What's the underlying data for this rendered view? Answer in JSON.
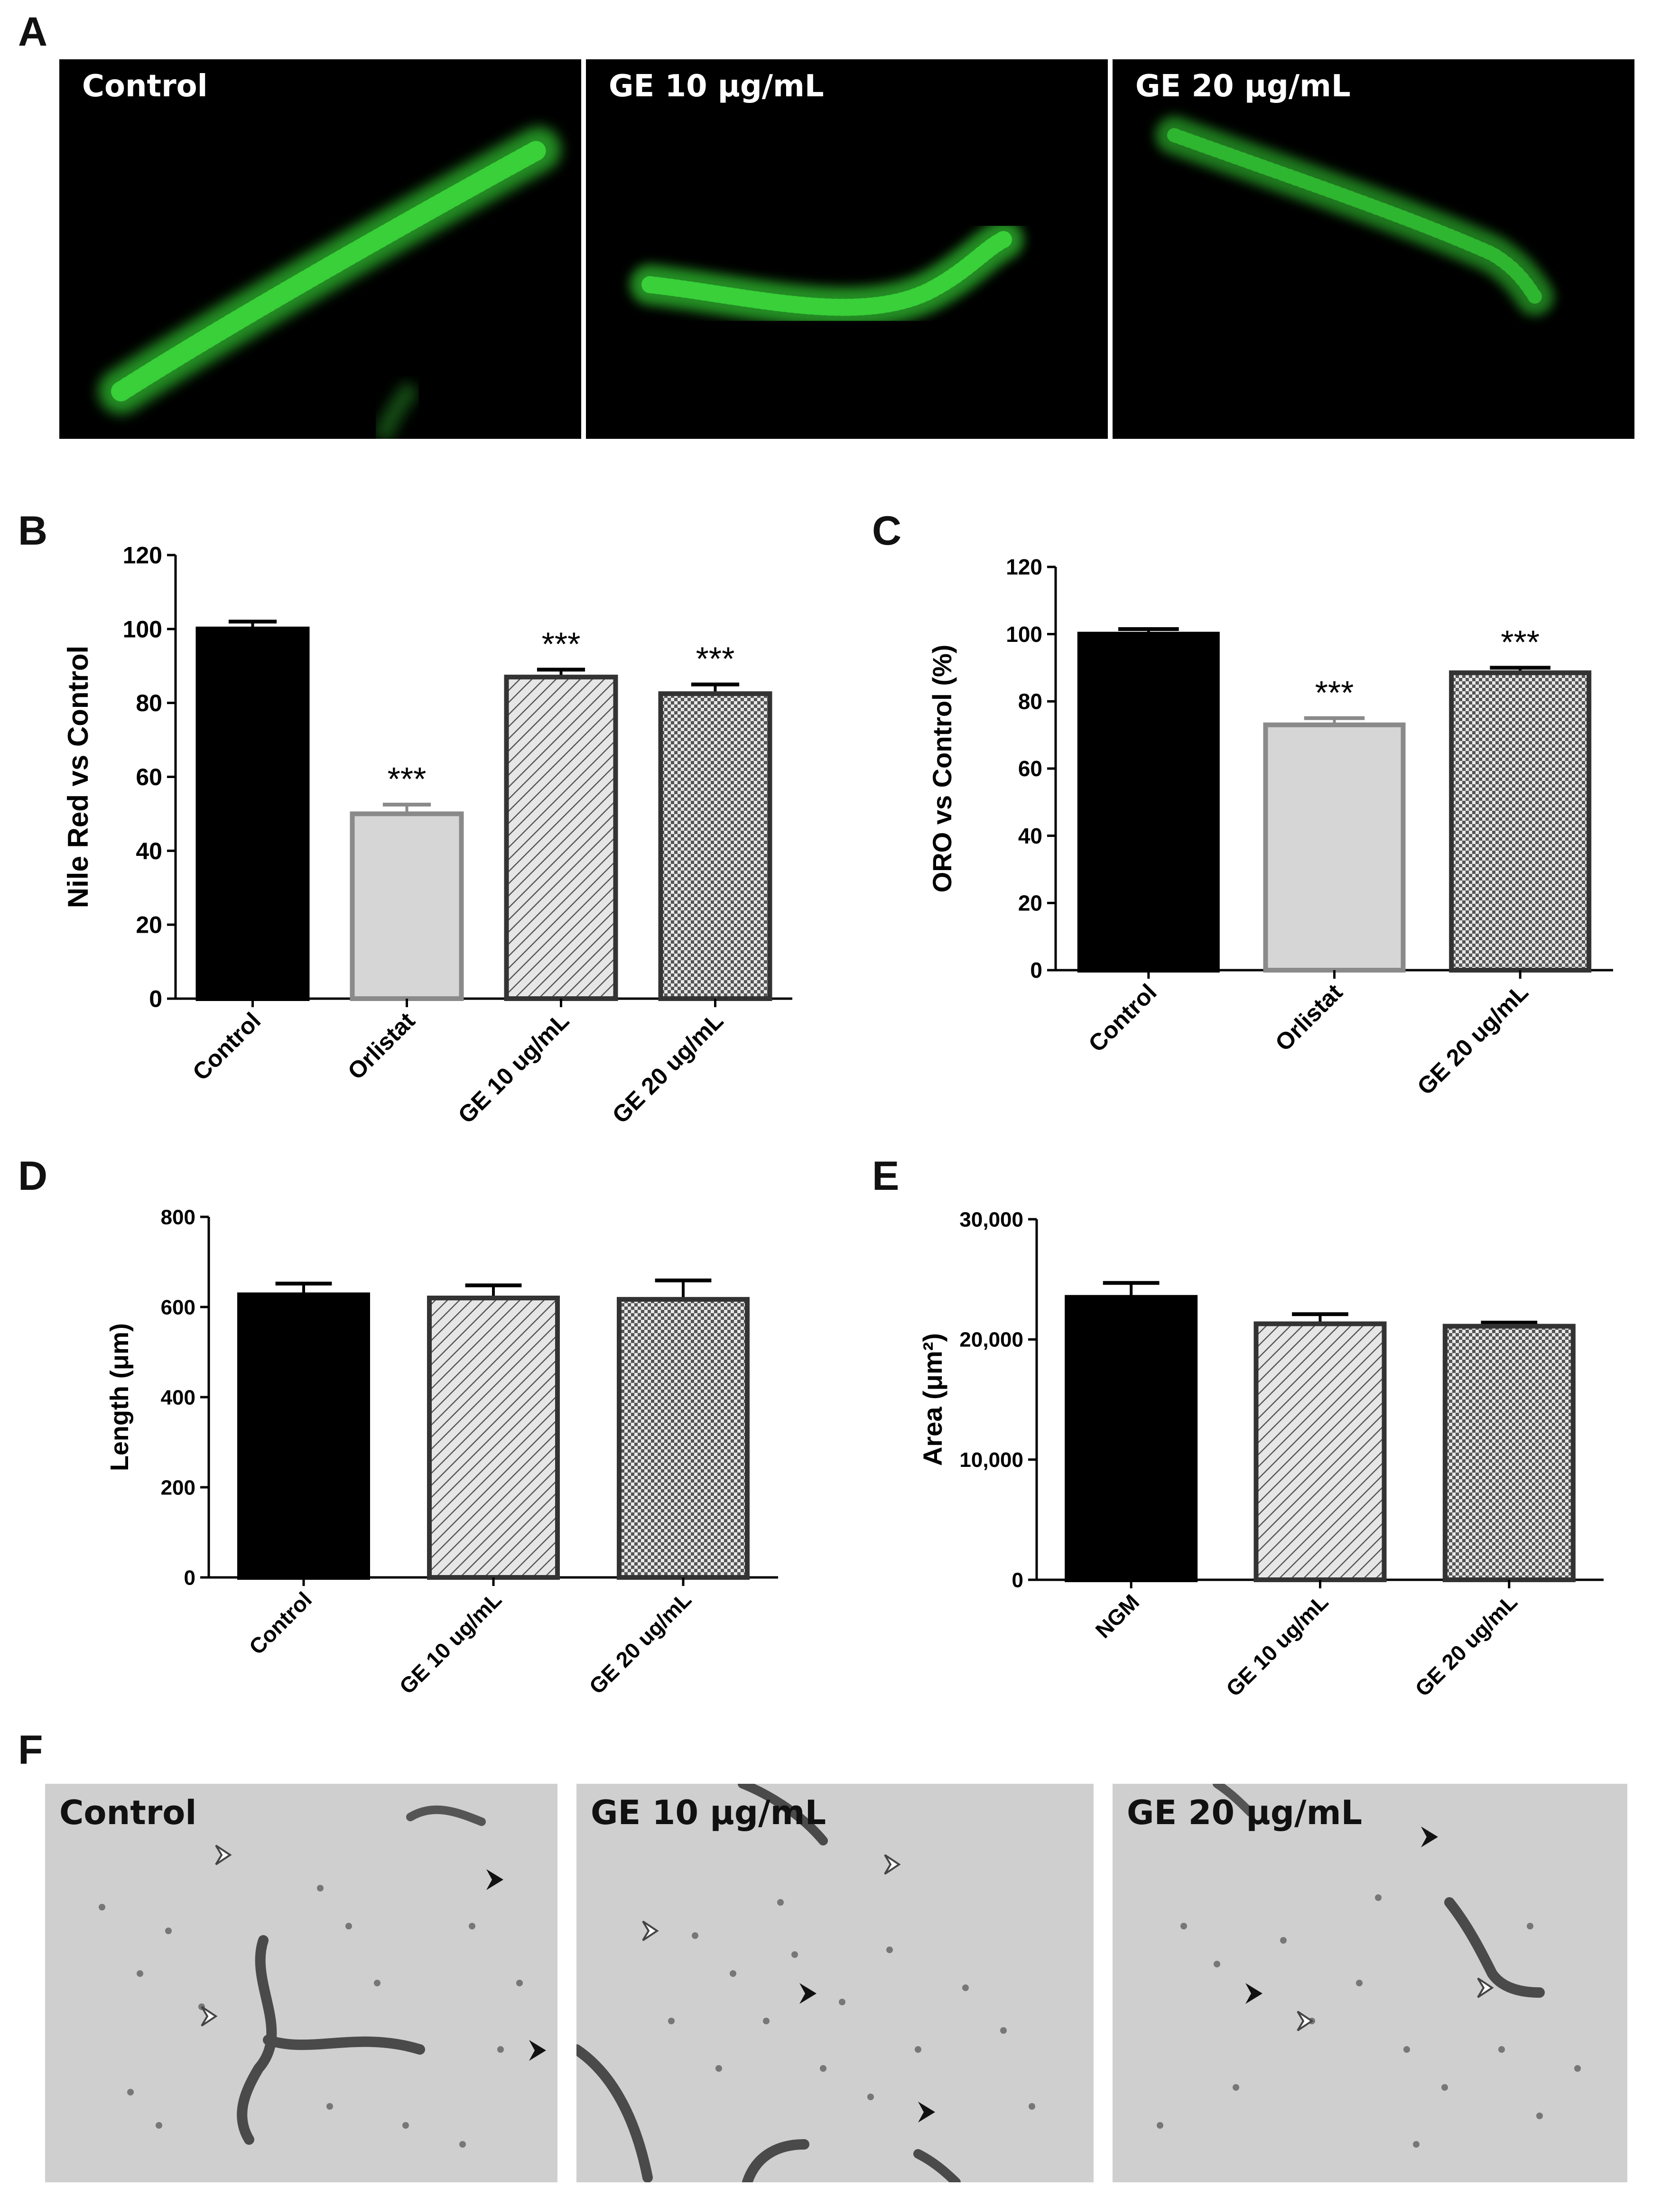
{
  "figure": {
    "panels": {
      "a": "A",
      "b": "B",
      "c": "C",
      "d": "D",
      "e": "E",
      "f": "F"
    },
    "fluorescence_labels": [
      "Control",
      "GE 10 μg/mL",
      "GE 20 μg/mL"
    ],
    "brightfield_labels": [
      "Control",
      "GE 10 μg/mL",
      "GE 20 μg/mL"
    ]
  },
  "colors": {
    "control": "#000000",
    "orlistat_fill": "#d6d6d6",
    "orlistat_stroke": "#8a8a8a",
    "hatch": "#555555",
    "frame": "#333333",
    "fluorescence": "#39c93a"
  },
  "chart_data": [
    {
      "id": "B",
      "type": "bar",
      "categories": [
        "Control",
        "Orlistat",
        "GE 10 ug/mL",
        "GE 20 ug/mL"
      ],
      "values": [
        100,
        50,
        87,
        82.5
      ],
      "errors": [
        2,
        2.5,
        2,
        2.5
      ],
      "patterns": [
        "solid",
        "light",
        "diag",
        "check"
      ],
      "significance": [
        "",
        "***",
        "***",
        "***"
      ],
      "ylabel": "Nile  Red vs  Control",
      "ylim": [
        0,
        120
      ],
      "yticks": [
        "0",
        "20",
        "40",
        "60",
        "80",
        "100",
        "120"
      ]
    },
    {
      "id": "C",
      "type": "bar",
      "categories": [
        "Control",
        "Orlistat",
        "GE 20 ug/mL"
      ],
      "values": [
        100,
        73,
        88.5
      ],
      "errors": [
        1.5,
        2,
        1.5
      ],
      "patterns": [
        "solid",
        "light",
        "check"
      ],
      "significance": [
        "",
        "***",
        "***"
      ],
      "ylabel": "ORO vs Control (%)",
      "ylim": [
        0,
        120
      ],
      "yticks": [
        "0",
        "20",
        "40",
        "60",
        "80",
        "100",
        "120"
      ]
    },
    {
      "id": "D",
      "type": "bar",
      "categories": [
        "Control",
        "GE 10 ug/mL",
        "GE 20 ug/mL"
      ],
      "values": [
        627,
        620,
        617
      ],
      "errors": [
        25,
        28,
        42
      ],
      "patterns": [
        "solid",
        "diag",
        "check"
      ],
      "significance": [
        "",
        "",
        ""
      ],
      "ylabel": "Length (μm)",
      "ylim": [
        0,
        800
      ],
      "yticks": [
        "0",
        "200",
        "400",
        "600",
        "800"
      ]
    },
    {
      "id": "E",
      "type": "bar",
      "categories": [
        "NGM",
        "GE 10 ug/mL",
        "GE 20 ug/mL"
      ],
      "values": [
        23500,
        21300,
        21100
      ],
      "errors": [
        1200,
        800,
        300
      ],
      "patterns": [
        "solid",
        "diag",
        "check"
      ],
      "significance": [
        "",
        "",
        ""
      ],
      "ylabel": "Area (μm²)",
      "ylim": [
        0,
        30000
      ],
      "yticks": [
        "0",
        "10,000",
        "20,000",
        "30,000"
      ]
    }
  ]
}
